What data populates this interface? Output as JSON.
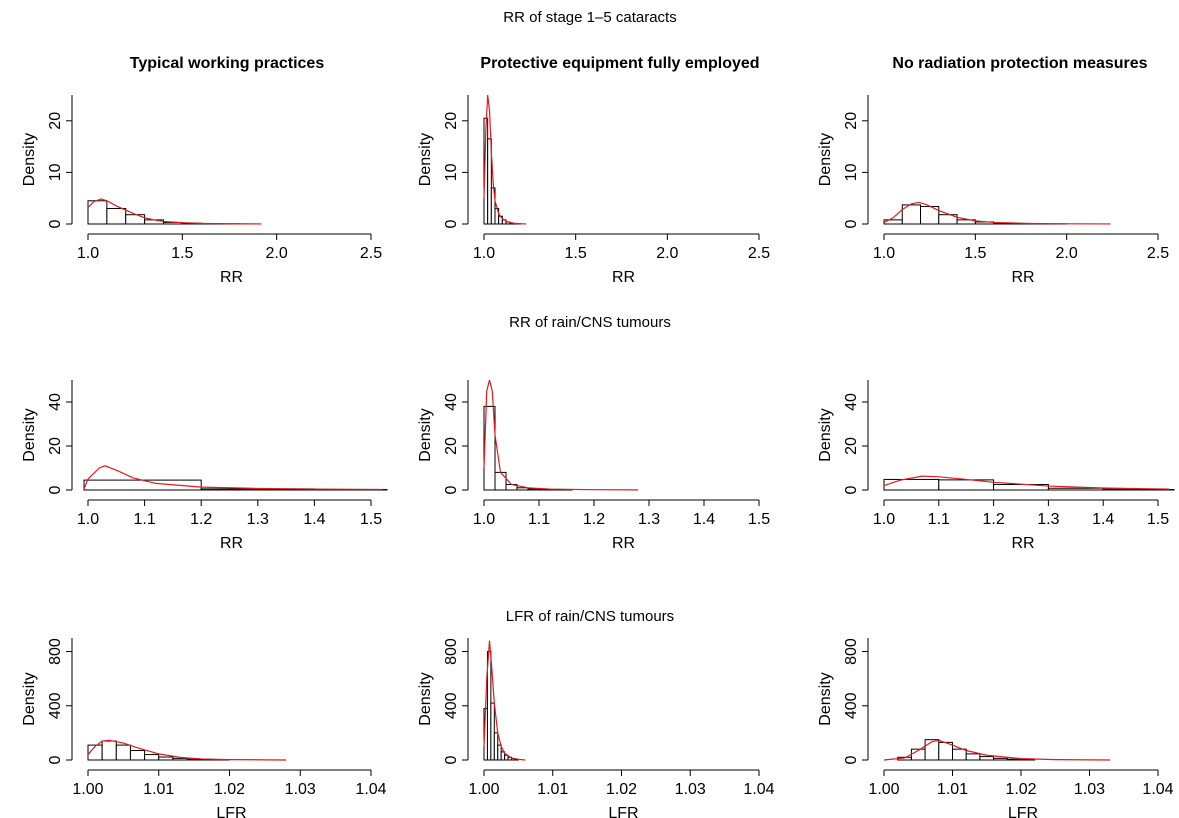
{
  "colors": {
    "density_line": "#e31a1c",
    "bars": "#000000",
    "background": "#ffffff"
  },
  "column_titles": [
    "Typical working practices",
    "Protective equipment fully employed",
    "No radiation protection measures"
  ],
  "row_titles": [
    "RR of stage 1–5 cataracts",
    "RR of rain/CNS tumours",
    "LFR of rain/CNS tumours"
  ],
  "chart_data": [
    {
      "type": "histogram",
      "row": 0,
      "col": 0,
      "xlabel": "RR",
      "ylabel": "Density",
      "xlim": [
        1.0,
        2.5
      ],
      "ylim": [
        0,
        25
      ],
      "xticks": [
        1.0,
        1.5,
        2.0,
        2.5
      ],
      "xtick_labels": [
        "1.0",
        "1.5",
        "2.0",
        "2.5"
      ],
      "yticks": [
        0,
        10,
        20
      ],
      "ytick_labels": [
        "0",
        "10",
        "20"
      ],
      "bins": [
        [
          1.0,
          1.1,
          4.5
        ],
        [
          1.1,
          1.2,
          3.0
        ],
        [
          1.2,
          1.3,
          1.8
        ],
        [
          1.3,
          1.4,
          0.8
        ],
        [
          1.4,
          1.5,
          0.3
        ],
        [
          1.5,
          1.6,
          0.15
        ],
        [
          1.6,
          1.7,
          0.08
        ],
        [
          1.7,
          1.8,
          0.04
        ],
        [
          1.8,
          1.9,
          0.02
        ]
      ],
      "density": [
        [
          1.0,
          3.2
        ],
        [
          1.03,
          4.3
        ],
        [
          1.07,
          4.85
        ],
        [
          1.1,
          4.5
        ],
        [
          1.15,
          3.5
        ],
        [
          1.2,
          2.7
        ],
        [
          1.25,
          1.9
        ],
        [
          1.3,
          1.2
        ],
        [
          1.35,
          0.8
        ],
        [
          1.4,
          0.5
        ],
        [
          1.5,
          0.25
        ],
        [
          1.6,
          0.12
        ],
        [
          1.7,
          0.06
        ],
        [
          1.8,
          0.03
        ],
        [
          1.92,
          0.01
        ]
      ]
    },
    {
      "type": "histogram",
      "row": 0,
      "col": 1,
      "xlabel": "RR",
      "ylabel": "Density",
      "xlim": [
        1.0,
        2.5
      ],
      "ylim": [
        0,
        25
      ],
      "xticks": [
        1.0,
        1.5,
        2.0,
        2.5
      ],
      "xtick_labels": [
        "1.0",
        "1.5",
        "2.0",
        "2.5"
      ],
      "yticks": [
        0,
        10,
        20
      ],
      "ytick_labels": [
        "0",
        "10",
        "20"
      ],
      "bins": [
        [
          1.0,
          1.02,
          20.5
        ],
        [
          1.02,
          1.04,
          16.5
        ],
        [
          1.04,
          1.06,
          7.0
        ],
        [
          1.06,
          1.08,
          3.0
        ],
        [
          1.08,
          1.1,
          1.5
        ],
        [
          1.1,
          1.12,
          0.8
        ],
        [
          1.12,
          1.14,
          0.4
        ],
        [
          1.14,
          1.16,
          0.2
        ],
        [
          1.16,
          1.18,
          0.1
        ],
        [
          1.18,
          1.2,
          0.05
        ]
      ],
      "density": [
        [
          1.0,
          5.0
        ],
        [
          1.01,
          18.0
        ],
        [
          1.02,
          26.0
        ],
        [
          1.03,
          22.0
        ],
        [
          1.04,
          14.0
        ],
        [
          1.05,
          8.0
        ],
        [
          1.06,
          4.5
        ],
        [
          1.08,
          2.0
        ],
        [
          1.1,
          1.0
        ],
        [
          1.13,
          0.4
        ],
        [
          1.16,
          0.15
        ],
        [
          1.2,
          0.05
        ],
        [
          1.23,
          0.01
        ]
      ]
    },
    {
      "type": "histogram",
      "row": 0,
      "col": 2,
      "xlabel": "RR",
      "ylabel": "Density",
      "xlim": [
        1.0,
        2.5
      ],
      "ylim": [
        0,
        25
      ],
      "xticks": [
        1.0,
        1.5,
        2.0,
        2.5
      ],
      "xtick_labels": [
        "1.0",
        "1.5",
        "2.0",
        "2.5"
      ],
      "yticks": [
        0,
        10,
        20
      ],
      "ytick_labels": [
        "0",
        "10",
        "20"
      ],
      "bins": [
        [
          1.0,
          1.1,
          0.8
        ],
        [
          1.1,
          1.2,
          3.7
        ],
        [
          1.2,
          1.3,
          3.4
        ],
        [
          1.3,
          1.4,
          1.8
        ],
        [
          1.4,
          1.5,
          0.8
        ],
        [
          1.5,
          1.6,
          0.4
        ],
        [
          1.6,
          1.7,
          0.2
        ],
        [
          1.7,
          1.8,
          0.1
        ],
        [
          1.8,
          1.9,
          0.05
        ],
        [
          1.9,
          2.0,
          0.03
        ]
      ],
      "density": [
        [
          1.0,
          0.3
        ],
        [
          1.05,
          1.2
        ],
        [
          1.1,
          2.8
        ],
        [
          1.15,
          3.9
        ],
        [
          1.19,
          4.2
        ],
        [
          1.23,
          3.8
        ],
        [
          1.3,
          2.6
        ],
        [
          1.4,
          1.3
        ],
        [
          1.5,
          0.6
        ],
        [
          1.6,
          0.3
        ],
        [
          1.8,
          0.1
        ],
        [
          2.0,
          0.04
        ],
        [
          2.24,
          0.01
        ]
      ]
    },
    {
      "type": "histogram",
      "row": 1,
      "col": 0,
      "xlabel": "RR",
      "ylabel": "Density",
      "xlim": [
        1.0,
        1.5
      ],
      "ylim": [
        0,
        50
      ],
      "xticks": [
        1.0,
        1.1,
        1.2,
        1.3,
        1.4,
        1.5
      ],
      "xtick_labels": [
        "1.0",
        "1.1",
        "1.2",
        "1.3",
        "1.4",
        "1.5"
      ],
      "yticks": [
        0,
        20,
        40
      ],
      "ytick_labels": [
        "0",
        "20",
        "40"
      ],
      "bins": [
        [
          0.98,
          1.2,
          4.5
        ],
        [
          1.2,
          1.4,
          0.5
        ],
        [
          1.4,
          1.6,
          0.2
        ]
      ],
      "density": [
        [
          0.98,
          0.5
        ],
        [
          1.0,
          5.0
        ],
        [
          1.02,
          10.0
        ],
        [
          1.03,
          11.0
        ],
        [
          1.05,
          9.0
        ],
        [
          1.08,
          5.5
        ],
        [
          1.12,
          3.0
        ],
        [
          1.2,
          1.3
        ],
        [
          1.3,
          0.7
        ],
        [
          1.4,
          0.4
        ],
        [
          1.52,
          0.25
        ]
      ]
    },
    {
      "type": "histogram",
      "row": 1,
      "col": 1,
      "xlabel": "RR",
      "ylabel": "Density",
      "xlim": [
        1.0,
        1.5
      ],
      "ylim": [
        0,
        50
      ],
      "xticks": [
        1.0,
        1.1,
        1.2,
        1.3,
        1.4,
        1.5
      ],
      "xtick_labels": [
        "1.0",
        "1.1",
        "1.2",
        "1.3",
        "1.4",
        "1.5"
      ],
      "yticks": [
        0,
        20,
        40
      ],
      "ytick_labels": [
        "0",
        "20",
        "40"
      ],
      "bins": [
        [
          1.0,
          1.02,
          38.0
        ],
        [
          1.02,
          1.04,
          8.0
        ],
        [
          1.04,
          1.06,
          2.5
        ],
        [
          1.06,
          1.08,
          1.0
        ],
        [
          1.08,
          1.1,
          0.5
        ],
        [
          1.1,
          1.12,
          0.3
        ],
        [
          1.12,
          1.14,
          0.2
        ],
        [
          1.14,
          1.16,
          0.1
        ]
      ],
      "density": [
        [
          1.0,
          10.0
        ],
        [
          1.005,
          45.0
        ],
        [
          1.01,
          57.0
        ],
        [
          1.015,
          45.0
        ],
        [
          1.02,
          25.0
        ],
        [
          1.03,
          8.0
        ],
        [
          1.05,
          2.5
        ],
        [
          1.08,
          1.0
        ],
        [
          1.12,
          0.4
        ],
        [
          1.2,
          0.15
        ],
        [
          1.28,
          0.05
        ]
      ]
    },
    {
      "type": "histogram",
      "row": 1,
      "col": 2,
      "xlabel": "RR",
      "ylabel": "Density",
      "xlim": [
        1.0,
        1.5
      ],
      "ylim": [
        0,
        50
      ],
      "xticks": [
        1.0,
        1.1,
        1.2,
        1.3,
        1.4,
        1.5
      ],
      "xtick_labels": [
        "1.0",
        "1.1",
        "1.2",
        "1.3",
        "1.4",
        "1.5"
      ],
      "yticks": [
        0,
        20,
        40
      ],
      "ytick_labels": [
        "0",
        "20",
        "40"
      ],
      "bins": [
        [
          1.0,
          1.1,
          4.8
        ],
        [
          1.1,
          1.2,
          4.6
        ],
        [
          1.2,
          1.3,
          2.5
        ],
        [
          1.3,
          1.4,
          0.8
        ],
        [
          1.4,
          1.5,
          0.4
        ],
        [
          1.5,
          1.6,
          0.2
        ]
      ],
      "density": [
        [
          1.0,
          2.0
        ],
        [
          1.03,
          4.5
        ],
        [
          1.07,
          6.3
        ],
        [
          1.1,
          6.0
        ],
        [
          1.15,
          4.8
        ],
        [
          1.2,
          3.5
        ],
        [
          1.3,
          1.8
        ],
        [
          1.4,
          0.9
        ],
        [
          1.52,
          0.4
        ]
      ]
    },
    {
      "type": "histogram",
      "row": 2,
      "col": 0,
      "xlabel": "LFR",
      "ylabel": "Density",
      "xlim": [
        1.0,
        1.04
      ],
      "ylim": [
        0,
        900
      ],
      "xticks": [
        1.0,
        1.01,
        1.02,
        1.03,
        1.04
      ],
      "xtick_labels": [
        "1.00",
        "1.01",
        "1.02",
        "1.03",
        "1.04"
      ],
      "yticks": [
        0,
        400,
        800
      ],
      "ytick_labels": [
        "0",
        "400",
        "800"
      ],
      "bins": [
        [
          1.0,
          1.002,
          110
        ],
        [
          1.002,
          1.004,
          140
        ],
        [
          1.004,
          1.006,
          110
        ],
        [
          1.006,
          1.008,
          70
        ],
        [
          1.008,
          1.01,
          40
        ],
        [
          1.01,
          1.012,
          22
        ],
        [
          1.012,
          1.014,
          12
        ],
        [
          1.014,
          1.016,
          6
        ],
        [
          1.016,
          1.018,
          3
        ],
        [
          1.018,
          1.02,
          2
        ]
      ],
      "density": [
        [
          1.0,
          40
        ],
        [
          1.001,
          100
        ],
        [
          1.002,
          140
        ],
        [
          1.003,
          145
        ],
        [
          1.005,
          125
        ],
        [
          1.007,
          90
        ],
        [
          1.01,
          45
        ],
        [
          1.013,
          20
        ],
        [
          1.016,
          8
        ],
        [
          1.02,
          3
        ],
        [
          1.025,
          1
        ],
        [
          1.028,
          0
        ]
      ]
    },
    {
      "type": "histogram",
      "row": 2,
      "col": 1,
      "xlabel": "LFR",
      "ylabel": "Density",
      "xlim": [
        1.0,
        1.04
      ],
      "ylim": [
        0,
        900
      ],
      "xticks": [
        1.0,
        1.01,
        1.02,
        1.03,
        1.04
      ],
      "xtick_labels": [
        "1.00",
        "1.01",
        "1.02",
        "1.03",
        "1.04"
      ],
      "yticks": [
        0,
        400,
        800
      ],
      "ytick_labels": [
        "0",
        "400",
        "800"
      ],
      "bins": [
        [
          1.0,
          1.0005,
          380
        ],
        [
          1.0005,
          1.001,
          800
        ],
        [
          1.001,
          1.0015,
          420
        ],
        [
          1.0015,
          1.002,
          200
        ],
        [
          1.002,
          1.0025,
          110
        ],
        [
          1.0025,
          1.003,
          60
        ],
        [
          1.003,
          1.0035,
          35
        ],
        [
          1.0035,
          1.004,
          20
        ],
        [
          1.004,
          1.0045,
          10
        ],
        [
          1.0045,
          1.005,
          5
        ]
      ],
      "density": [
        [
          1.0,
          100
        ],
        [
          1.0004,
          600
        ],
        [
          1.0008,
          880
        ],
        [
          1.0011,
          700
        ],
        [
          1.0015,
          420
        ],
        [
          1.002,
          200
        ],
        [
          1.0025,
          100
        ],
        [
          1.003,
          50
        ],
        [
          1.004,
          15
        ],
        [
          1.005,
          5
        ],
        [
          1.006,
          0
        ]
      ]
    },
    {
      "type": "histogram",
      "row": 2,
      "col": 2,
      "xlabel": "LFR",
      "ylabel": "Density",
      "xlim": [
        1.0,
        1.04
      ],
      "ylim": [
        0,
        900
      ],
      "xticks": [
        1.0,
        1.01,
        1.02,
        1.03,
        1.04
      ],
      "xtick_labels": [
        "1.00",
        "1.01",
        "1.02",
        "1.03",
        "1.04"
      ],
      "yticks": [
        0,
        400,
        800
      ],
      "ytick_labels": [
        "0",
        "400",
        "800"
      ],
      "bins": [
        [
          1.002,
          1.004,
          20
        ],
        [
          1.004,
          1.006,
          80
        ],
        [
          1.006,
          1.008,
          150
        ],
        [
          1.008,
          1.01,
          130
        ],
        [
          1.01,
          1.012,
          80
        ],
        [
          1.012,
          1.014,
          45
        ],
        [
          1.014,
          1.016,
          25
        ],
        [
          1.016,
          1.018,
          12
        ],
        [
          1.018,
          1.02,
          6
        ],
        [
          1.02,
          1.022,
          3
        ]
      ],
      "density": [
        [
          1.0,
          0
        ],
        [
          1.003,
          15
        ],
        [
          1.005,
          70
        ],
        [
          1.007,
          135
        ],
        [
          1.008,
          145
        ],
        [
          1.01,
          110
        ],
        [
          1.012,
          70
        ],
        [
          1.015,
          35
        ],
        [
          1.02,
          10
        ],
        [
          1.025,
          3
        ],
        [
          1.033,
          0
        ]
      ]
    }
  ]
}
